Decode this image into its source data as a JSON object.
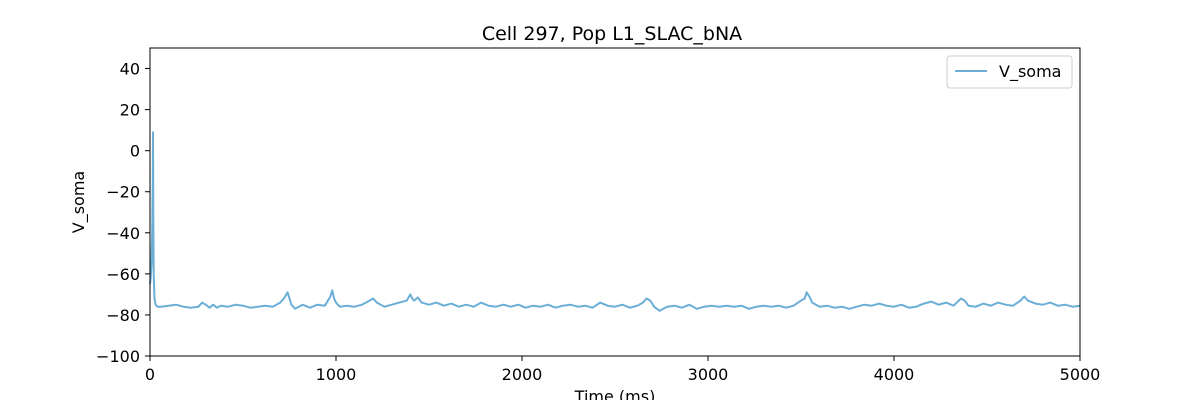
{
  "chart_data": {
    "type": "line",
    "title": "Cell 297, Pop L1_SLAC_bNA",
    "xlabel": "Time (ms)",
    "ylabel": "V_soma",
    "xlim": [
      0,
      5000
    ],
    "ylim": [
      -100,
      50
    ],
    "xticks": [
      0,
      1000,
      2000,
      3000,
      4000,
      5000
    ],
    "yticks": [
      -100,
      -80,
      -60,
      -40,
      -20,
      0,
      20,
      40
    ],
    "grid": false,
    "legend": {
      "placement": "top-right"
    },
    "series": [
      {
        "name": "V_soma",
        "color": "#6baed6",
        "points": [
          [
            0,
            -65
          ],
          [
            4,
            -62
          ],
          [
            8,
            -55
          ],
          [
            12,
            -40
          ],
          [
            15,
            -15
          ],
          [
            16,
            9
          ],
          [
            18,
            -30
          ],
          [
            20,
            -60
          ],
          [
            24,
            -72
          ],
          [
            30,
            -75
          ],
          [
            40,
            -76
          ],
          [
            60,
            -76
          ],
          [
            100,
            -75.5
          ],
          [
            140,
            -75
          ],
          [
            180,
            -76
          ],
          [
            220,
            -76.5
          ],
          [
            260,
            -76
          ],
          [
            280,
            -74
          ],
          [
            300,
            -75
          ],
          [
            320,
            -76.5
          ],
          [
            340,
            -75
          ],
          [
            360,
            -76.5
          ],
          [
            380,
            -75.5
          ],
          [
            420,
            -76
          ],
          [
            460,
            -75
          ],
          [
            500,
            -75.5
          ],
          [
            540,
            -76.5
          ],
          [
            580,
            -76
          ],
          [
            620,
            -75.5
          ],
          [
            660,
            -76
          ],
          [
            700,
            -74
          ],
          [
            720,
            -72
          ],
          [
            740,
            -69
          ],
          [
            750,
            -72
          ],
          [
            760,
            -75
          ],
          [
            780,
            -77
          ],
          [
            820,
            -75
          ],
          [
            860,
            -76.5
          ],
          [
            900,
            -75
          ],
          [
            940,
            -75.5
          ],
          [
            970,
            -71
          ],
          [
            980,
            -68
          ],
          [
            990,
            -72
          ],
          [
            1000,
            -74
          ],
          [
            1020,
            -76
          ],
          [
            1060,
            -75.5
          ],
          [
            1100,
            -76
          ],
          [
            1140,
            -75
          ],
          [
            1180,
            -73
          ],
          [
            1200,
            -72
          ],
          [
            1220,
            -74
          ],
          [
            1260,
            -76
          ],
          [
            1300,
            -75
          ],
          [
            1340,
            -74
          ],
          [
            1380,
            -73
          ],
          [
            1400,
            -70
          ],
          [
            1410,
            -72
          ],
          [
            1420,
            -73
          ],
          [
            1440,
            -71.5
          ],
          [
            1460,
            -74
          ],
          [
            1500,
            -75
          ],
          [
            1540,
            -74
          ],
          [
            1580,
            -75.5
          ],
          [
            1620,
            -74.5
          ],
          [
            1660,
            -76
          ],
          [
            1700,
            -75
          ],
          [
            1740,
            -76
          ],
          [
            1780,
            -74
          ],
          [
            1820,
            -75.5
          ],
          [
            1860,
            -76
          ],
          [
            1900,
            -75
          ],
          [
            1940,
            -76
          ],
          [
            1980,
            -75
          ],
          [
            2020,
            -76.5
          ],
          [
            2060,
            -75.5
          ],
          [
            2100,
            -76
          ],
          [
            2140,
            -75
          ],
          [
            2180,
            -76.5
          ],
          [
            2220,
            -75.5
          ],
          [
            2260,
            -75
          ],
          [
            2300,
            -76
          ],
          [
            2340,
            -75.5
          ],
          [
            2380,
            -76.5
          ],
          [
            2420,
            -74
          ],
          [
            2460,
            -75.5
          ],
          [
            2500,
            -76
          ],
          [
            2540,
            -75
          ],
          [
            2580,
            -76.5
          ],
          [
            2620,
            -75.5
          ],
          [
            2650,
            -74
          ],
          [
            2670,
            -72
          ],
          [
            2690,
            -73
          ],
          [
            2710,
            -76
          ],
          [
            2740,
            -78
          ],
          [
            2780,
            -76
          ],
          [
            2820,
            -75.5
          ],
          [
            2860,
            -76.5
          ],
          [
            2900,
            -75
          ],
          [
            2940,
            -77
          ],
          [
            2980,
            -76
          ],
          [
            3020,
            -75.5
          ],
          [
            3060,
            -76
          ],
          [
            3100,
            -75.5
          ],
          [
            3140,
            -76
          ],
          [
            3180,
            -75.5
          ],
          [
            3220,
            -77
          ],
          [
            3260,
            -76
          ],
          [
            3300,
            -75.5
          ],
          [
            3340,
            -76
          ],
          [
            3380,
            -75.5
          ],
          [
            3420,
            -76.5
          ],
          [
            3460,
            -75.5
          ],
          [
            3500,
            -73
          ],
          [
            3520,
            -72
          ],
          [
            3530,
            -69
          ],
          [
            3545,
            -71
          ],
          [
            3560,
            -74
          ],
          [
            3600,
            -76
          ],
          [
            3640,
            -75.5
          ],
          [
            3680,
            -76.5
          ],
          [
            3720,
            -76
          ],
          [
            3760,
            -77
          ],
          [
            3800,
            -76
          ],
          [
            3840,
            -75
          ],
          [
            3880,
            -75.5
          ],
          [
            3920,
            -74.5
          ],
          [
            3960,
            -75.5
          ],
          [
            4000,
            -76
          ],
          [
            4040,
            -75
          ],
          [
            4080,
            -76.5
          ],
          [
            4120,
            -76
          ],
          [
            4160,
            -74.5
          ],
          [
            4200,
            -73.5
          ],
          [
            4240,
            -75
          ],
          [
            4280,
            -74
          ],
          [
            4320,
            -75.5
          ],
          [
            4360,
            -72
          ],
          [
            4380,
            -73
          ],
          [
            4400,
            -75.5
          ],
          [
            4440,
            -76
          ],
          [
            4480,
            -74.5
          ],
          [
            4520,
            -75.5
          ],
          [
            4560,
            -74
          ],
          [
            4600,
            -75
          ],
          [
            4640,
            -75.5
          ],
          [
            4680,
            -73
          ],
          [
            4700,
            -71
          ],
          [
            4720,
            -73
          ],
          [
            4760,
            -74.5
          ],
          [
            4800,
            -75
          ],
          [
            4840,
            -74
          ],
          [
            4880,
            -75.5
          ],
          [
            4920,
            -75
          ],
          [
            4960,
            -76
          ],
          [
            5000,
            -75.5
          ]
        ]
      }
    ]
  }
}
